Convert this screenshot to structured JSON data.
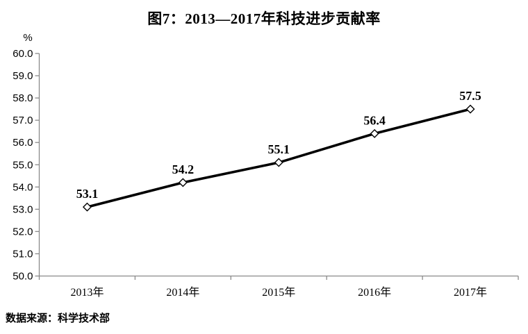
{
  "page": {
    "title": "图7：2013—2017年科技进步贡献率",
    "unit_label": "%",
    "source_note": "数据来源：科学技术部"
  },
  "chart_data": {
    "type": "line",
    "title": "图7：2013—2017年科技进步贡献率",
    "ylabel_unit": "%",
    "categories": [
      "2013年",
      "2014年",
      "2015年",
      "2016年",
      "2017年"
    ],
    "series": [
      {
        "values": [
          53.1,
          54.2,
          55.1,
          56.4,
          57.5
        ]
      }
    ],
    "data_labels": [
      "53.1",
      "54.2",
      "55.1",
      "56.4",
      "57.5"
    ],
    "ylim": [
      50.0,
      60.0
    ],
    "ytick_step": 1.0,
    "ytick_labels": [
      "50.0",
      "51.0",
      "52.0",
      "53.0",
      "54.0",
      "55.0",
      "56.0",
      "57.0",
      "58.0",
      "59.0",
      "60.0"
    ],
    "grid": false,
    "legend_position": "none",
    "marker": "open-diamond",
    "line_color": "#000000",
    "marker_fill": "#ffffff",
    "marker_stroke": "#000000",
    "axis_color": "#8a8a8a",
    "text_color": "#000000",
    "source_note": "数据来源：科学技术部"
  }
}
